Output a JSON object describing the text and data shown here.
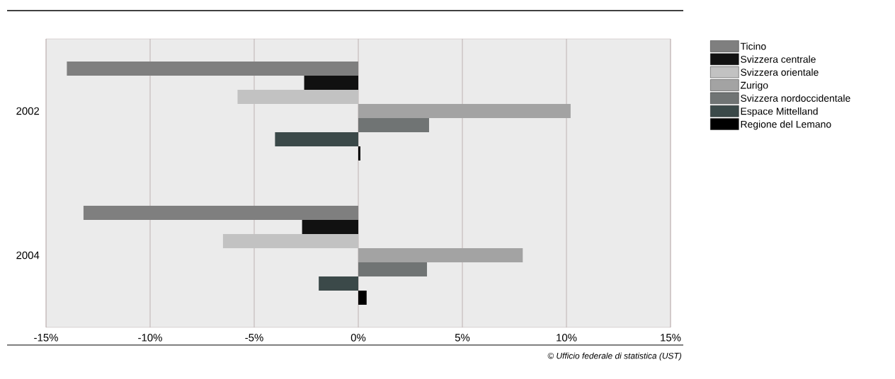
{
  "chart_data": {
    "type": "bar",
    "orientation": "horizontal",
    "categories": [
      "2002",
      "2004"
    ],
    "series": [
      {
        "name": "Ticino",
        "color": "#7f7f7f",
        "values": [
          -14.0,
          -13.2
        ]
      },
      {
        "name": "Svizzera centrale",
        "color": "#111111",
        "values": [
          -2.6,
          -2.7
        ]
      },
      {
        "name": "Svizzera orientale",
        "color": "#c2c2c2",
        "values": [
          -5.8,
          -6.5
        ]
      },
      {
        "name": "Zurigo",
        "color": "#a3a3a3",
        "values": [
          10.2,
          7.9
        ]
      },
      {
        "name": "Svizzera nordoccidentale",
        "color": "#707474",
        "values": [
          3.4,
          3.3
        ]
      },
      {
        "name": "Espace Mittelland",
        "color": "#3b4949",
        "values": [
          -4.0,
          -1.9
        ]
      },
      {
        "name": "Regione del Lemano",
        "color": "#000000",
        "values": [
          0.1,
          0.4
        ]
      }
    ],
    "xlim": [
      -15,
      15
    ],
    "xticks": [
      {
        "value": -15,
        "label": "-15%"
      },
      {
        "value": -10,
        "label": "-10%"
      },
      {
        "value": -5,
        "label": "-5%"
      },
      {
        "value": 0,
        "label": "0%"
      },
      {
        "value": 5,
        "label": "5%"
      },
      {
        "value": 10,
        "label": "10%"
      },
      {
        "value": 15,
        "label": "15%"
      }
    ],
    "grid": "x",
    "legend": "top right",
    "annotations": [
      "© Ufficio federale di statistica (UST)"
    ]
  }
}
